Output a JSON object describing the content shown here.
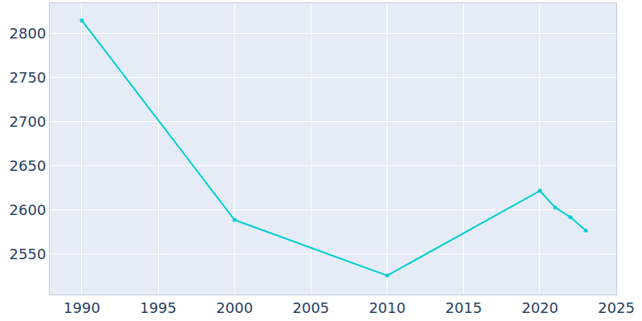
{
  "chart_data": {
    "type": "line",
    "x": [
      1990,
      2000,
      2010,
      2020,
      2021,
      2022,
      2023
    ],
    "values": [
      2815,
      2589,
      2526,
      2622,
      2603,
      2592,
      2577
    ],
    "color": "#00ced1",
    "marker": "circle",
    "line_style": "solid",
    "xlim": [
      1987.9,
      2025
    ],
    "xticks": [
      1990,
      1995,
      2000,
      2005,
      2010,
      2015,
      2020,
      2025
    ],
    "ylim": [
      2504.5,
      2834.5
    ],
    "yticks": [
      2550,
      2600,
      2650,
      2700,
      2750,
      2800
    ],
    "grid": true
  }
}
